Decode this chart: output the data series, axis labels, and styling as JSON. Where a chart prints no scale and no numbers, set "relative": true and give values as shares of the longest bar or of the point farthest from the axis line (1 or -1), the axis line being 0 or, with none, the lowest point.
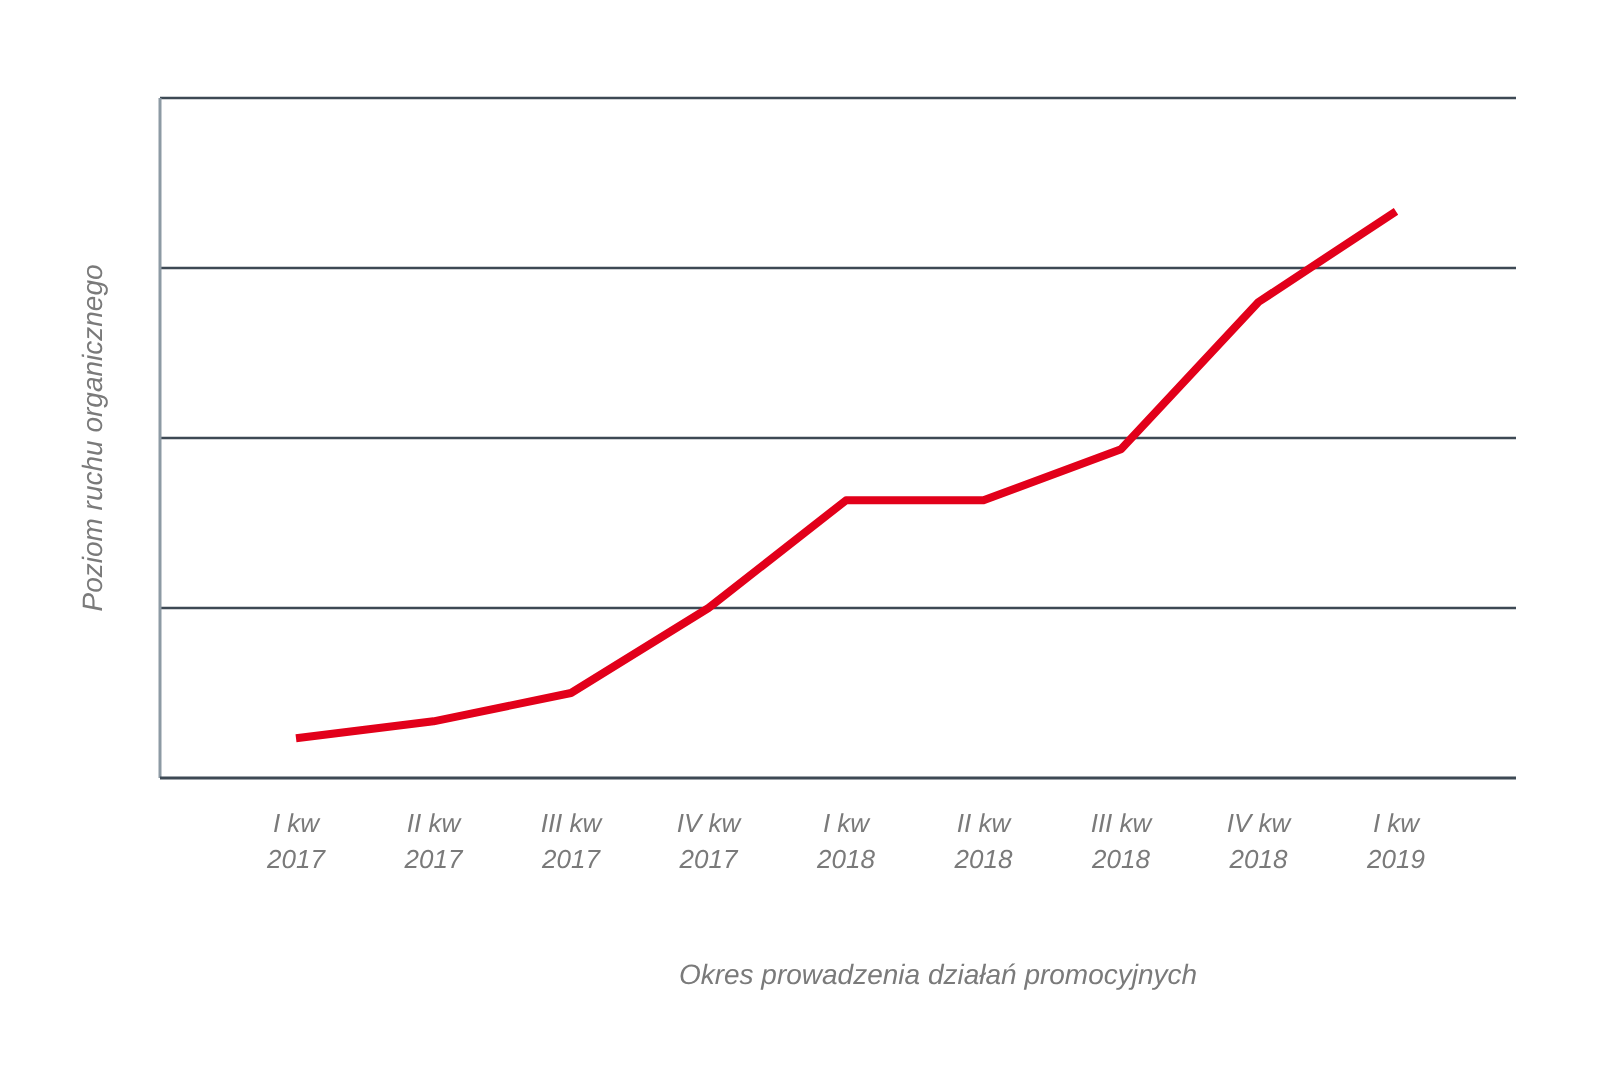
{
  "chart_data": {
    "type": "line",
    "xlabel": "Okres prowadzenia działań promocyjnych",
    "ylabel": "Poziom ruchu organicznego",
    "categories": [
      "I kw 2017",
      "II kw 2017",
      "III kw 2017",
      "IV kw 2017",
      "I kw 2018",
      "II kw 2018",
      "III kw 2018",
      "IV kw 2018",
      "I kw 2019"
    ],
    "series": [
      {
        "color": "#e2001a",
        "values": [
          0.07,
          0.1,
          0.15,
          0.3,
          0.49,
          0.49,
          0.58,
          0.84,
          1
        ]
      }
    ],
    "relative": true,
    "grid": "y",
    "line_style": "solid"
  }
}
